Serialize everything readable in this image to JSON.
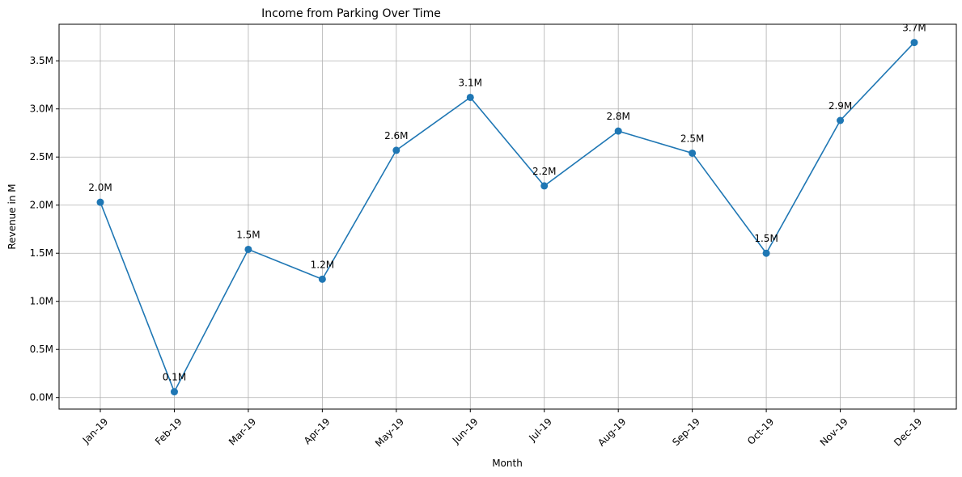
{
  "chart_data": {
    "type": "line",
    "title": "Income from Parking Over Time",
    "xlabel": "Month",
    "ylabel": "Revenue in M",
    "categories": [
      "Jan-19",
      "Feb-19",
      "Mar-19",
      "Apr-19",
      "May-19",
      "Jun-19",
      "Jul-19",
      "Aug-19",
      "Sep-19",
      "Oct-19",
      "Nov-19",
      "Dec-19"
    ],
    "series": [
      {
        "values": [
          2.03,
          0.06,
          1.54,
          1.23,
          2.57,
          3.12,
          2.2,
          2.77,
          2.54,
          1.5,
          2.88,
          3.69
        ],
        "labels": [
          "2.0M",
          "0.1M",
          "1.5M",
          "1.2M",
          "2.6M",
          "3.1M",
          "2.2M",
          "2.8M",
          "2.5M",
          "1.5M",
          "2.9M",
          "3.7M"
        ],
        "color": "#1f77b4"
      }
    ],
    "yticks": [
      0,
      0.5,
      1.0,
      1.5,
      2.0,
      2.5,
      3.0,
      3.5
    ],
    "ytick_labels": [
      "0.0M",
      "0.5M",
      "1.0M",
      "1.5M",
      "2.0M",
      "2.5M",
      "3.0M",
      "3.5M"
    ],
    "ylim": [
      -0.12,
      3.88
    ],
    "grid": true,
    "x_tick_rotation": 45
  }
}
